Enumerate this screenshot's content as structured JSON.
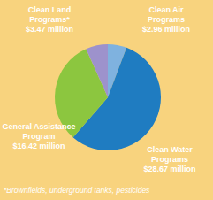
{
  "chart_data": {
    "type": "pie",
    "categories": [
      "Clean Air Programs",
      "Clean Water Programs",
      "General Assistance Program",
      "Clean Land Programs*"
    ],
    "values": [
      2.96,
      28.67,
      16.42,
      3.47
    ],
    "value_labels": [
      "$2.96 million",
      "$28.67 million",
      "$16.42 million",
      "$3.47 million"
    ],
    "colors": [
      "#7fb2df",
      "#1f7cc1",
      "#8cc63f",
      "#9d92cc"
    ],
    "data_labels": true,
    "annotations": [
      "*Brownfields, underground tanks, pesticides"
    ]
  }
}
